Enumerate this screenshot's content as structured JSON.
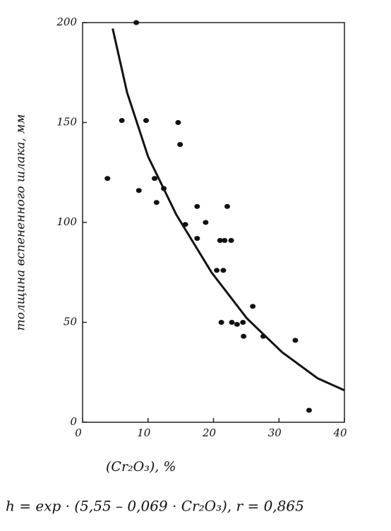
{
  "chart_data": {
    "type": "scatter",
    "ylabel": "толщина вспененного шлака, мм",
    "xlabel": "(Cr₂O₃),   %",
    "annotation": "h = exp · (5,55 – 0,069 · Cr₂O₃), r = 0,865",
    "xlim": [
      0,
      40
    ],
    "xticks": [
      0,
      10,
      20,
      30,
      40
    ],
    "ylim": [
      0,
      200
    ],
    "yticks": [
      0,
      50,
      100,
      150,
      200
    ],
    "series": [
      {
        "color": "#111111",
        "x": [
          3.8,
          6,
          8.2,
          9.7,
          8.6,
          11,
          11.3,
          12.4,
          14.6,
          14.9,
          15.7,
          17.5,
          17.5,
          18.8,
          21,
          21.7,
          22.7,
          22.1,
          20.5,
          21.5,
          21.2,
          22.8,
          23.6,
          24.5,
          24.6,
          26,
          27.6,
          32.5,
          34.6
        ],
        "values": [
          122,
          151,
          200,
          151,
          116,
          122,
          110,
          117,
          150,
          139,
          99,
          108,
          92,
          100,
          91,
          91,
          91,
          108,
          76,
          76,
          50,
          50,
          49,
          50,
          43,
          58,
          43,
          41,
          6
        ]
      },
      {
        "color": "#111111",
        "line": true,
        "x": [
          4.6,
          6.8,
          10,
          14.3,
          19.7,
          25.1,
          30.5,
          35.9,
          40
        ],
        "values": [
          197,
          165,
          133,
          104,
          75,
          52,
          35,
          22,
          16
        ]
      }
    ]
  }
}
